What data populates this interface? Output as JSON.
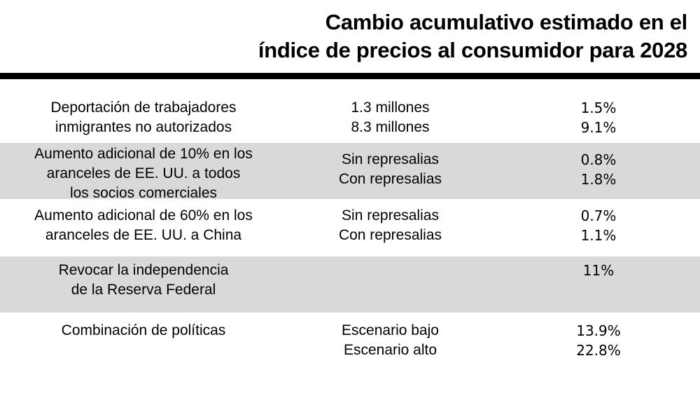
{
  "chart_data": {
    "type": "table",
    "title": "Cambio acumulativo estimado en el índice de precios al consumidor para 2028",
    "title_lines": [
      "Cambio acumulativo estimado en el",
      "índice de precios al consumidor para 2028"
    ],
    "rows": [
      {
        "policy_lines": [
          "Deportación de trabajadores",
          "inmigrantes no autorizados"
        ],
        "scenarios": [
          "1.3 millones",
          "8.3 millones"
        ],
        "values": [
          "1.5%",
          "9.1%"
        ],
        "shaded": false
      },
      {
        "policy_lines": [
          "Aumento adicional de 10% en los",
          "aranceles de EE. UU. a todos",
          "los socios comerciales"
        ],
        "scenarios": [
          "Sin represalias",
          "Con represalias"
        ],
        "values": [
          "0.8%",
          "1.8%"
        ],
        "shaded": true
      },
      {
        "policy_lines": [
          "Aumento adicional de 60% en los",
          "aranceles de EE. UU. a China"
        ],
        "scenarios": [
          "Sin represalias",
          "Con represalias"
        ],
        "values": [
          "0.7%",
          "1.1%"
        ],
        "shaded": false
      },
      {
        "policy_lines": [
          "Revocar la independencia",
          "de la Reserva Federal"
        ],
        "scenarios": [],
        "values": [
          "11%"
        ],
        "shaded": true
      },
      {
        "policy_lines": [
          "Combinación de políticas"
        ],
        "scenarios": [
          "Escenario bajo",
          "Escenario alto"
        ],
        "values": [
          "13.9%",
          "22.8%"
        ],
        "shaded": false
      }
    ]
  },
  "colors": {
    "shade": "#d9d9d9",
    "rule": "#000000",
    "text": "#000000"
  }
}
